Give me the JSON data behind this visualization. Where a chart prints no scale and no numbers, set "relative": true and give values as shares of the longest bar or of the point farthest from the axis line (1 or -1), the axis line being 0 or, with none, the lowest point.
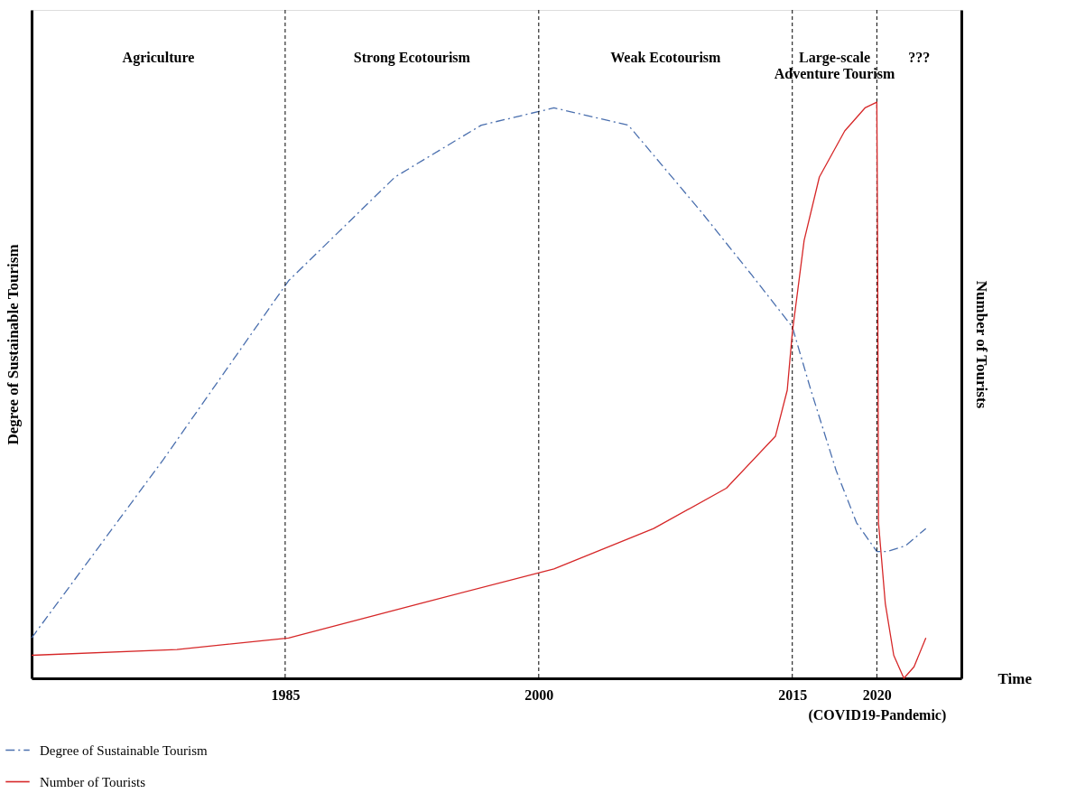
{
  "chart_data": {
    "type": "line",
    "relative": true,
    "xlabel": "Time",
    "ylabel": "Degree of Sustainable Tourism",
    "y2label": "Number of Tourists",
    "xlim": [
      1970,
      2025
    ],
    "xticks": [
      1985,
      2000,
      2015,
      {
        "value": 2020,
        "label": "2020\n(COVID19-Pandemic)"
      }
    ],
    "series": [
      {
        "name": "Degree of Sustainable Tourism",
        "color": "#4a6fae",
        "line_style": "dashed",
        "x": [
          1970,
          1977.8,
          1985.2,
          1991.5,
          1996.6,
          2000.9,
          2005.3,
          2009.6,
          2012.6,
          2015,
          2016.1,
          2017.6,
          2018.8,
          2020,
          2020.6,
          2021.7,
          2022.9
        ],
        "values": [
          0.07,
          0.38,
          0.69,
          0.87,
          0.96,
          0.99,
          0.96,
          0.81,
          0.7,
          0.61,
          0.5,
          0.36,
          0.27,
          0.22,
          0.22,
          0.23,
          0.26
        ]
      },
      {
        "name": "Number of Tourists",
        "color": "#d62728",
        "line_style": "solid",
        "axis": "y2",
        "x": [
          1970,
          1978.6,
          1985.2,
          1993,
          2000.9,
          2006.8,
          2011.1,
          2014,
          2014.7,
          2015,
          2015.7,
          2016.6,
          2018.1,
          2019.3,
          2020,
          2020.05,
          2020.1,
          2020.5,
          2021,
          2021.6,
          2022.2,
          2022.9
        ],
        "values": [
          0.04,
          0.05,
          0.07,
          0.13,
          0.19,
          0.26,
          0.33,
          0.42,
          0.5,
          0.6,
          0.76,
          0.87,
          0.95,
          0.99,
          1.0,
          0.72,
          0.27,
          0.13,
          0.04,
          0.0,
          0.02,
          0.07
        ]
      }
    ],
    "ref_lines": [
      {
        "axis": "x",
        "value": 1985,
        "color": "#000000",
        "line_style": "dashed"
      },
      {
        "axis": "x",
        "value": 2000,
        "color": "#000000",
        "line_style": "dashed"
      },
      {
        "axis": "x",
        "value": 2015,
        "color": "#000000",
        "line_style": "dashed"
      },
      {
        "axis": "x",
        "value": 2020,
        "color": "#000000",
        "line_style": "dashed"
      }
    ],
    "annotations": [
      "Agriculture",
      "Strong Ecotourism",
      "Weak Ecotourism",
      "Large-scale\nAdventure Tourism",
      "???"
    ],
    "legend": "bottom left",
    "grid": false,
    "marker": "none"
  }
}
